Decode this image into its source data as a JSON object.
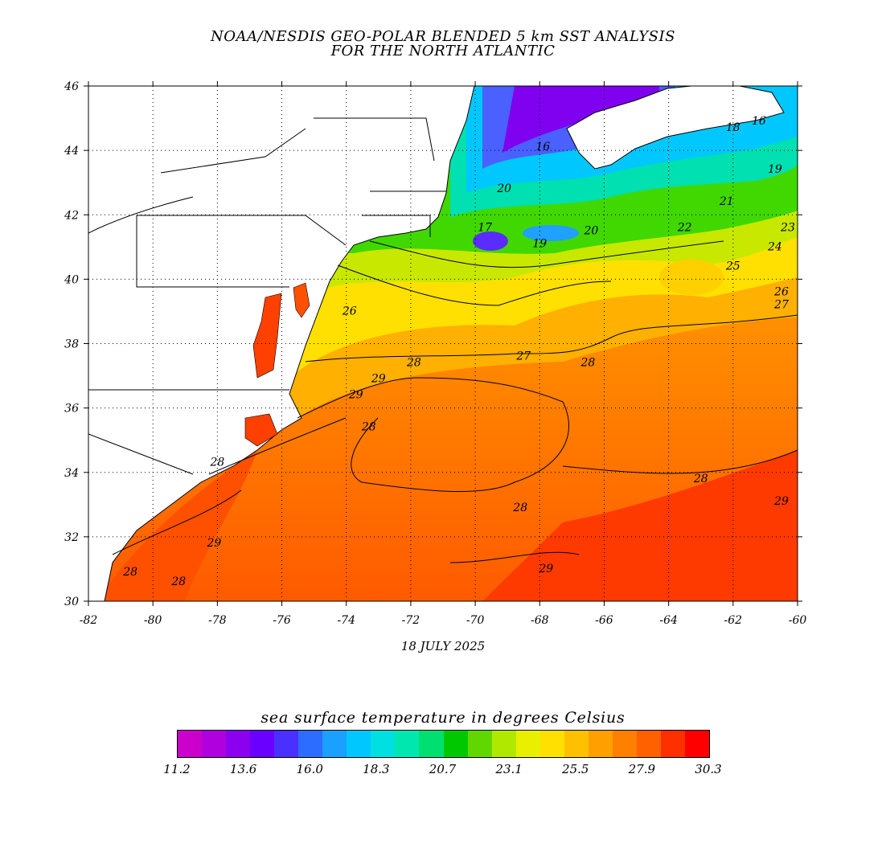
{
  "title": {
    "line1": "NOAA/NESDIS GEO-POLAR BLENDED 5 km SST ANALYSIS",
    "line2": "FOR THE NORTH ATLANTIC"
  },
  "date": "18 JULY 2025",
  "map": {
    "lon_range": [
      -82,
      -60
    ],
    "lat_range": [
      30,
      46
    ],
    "lon_ticks": [
      "-82",
      "-80",
      "-78",
      "-76",
      "-74",
      "-72",
      "-70",
      "-68",
      "-66",
      "-64",
      "-62",
      "-60"
    ],
    "lat_ticks": [
      "30",
      "32",
      "34",
      "36",
      "38",
      "40",
      "42",
      "44",
      "46"
    ],
    "grid": "dotted",
    "land_color": "#ffffff",
    "contour_labels": [
      {
        "text": "26",
        "lon": -73.9,
        "lat": 38.9
      },
      {
        "text": "27",
        "lon": -68.5,
        "lat": 37.5
      },
      {
        "text": "28",
        "lon": -71.9,
        "lat": 37.3
      },
      {
        "text": "28",
        "lon": -66.5,
        "lat": 37.3
      },
      {
        "text": "29",
        "lon": -73.0,
        "lat": 36.8
      },
      {
        "text": "29",
        "lon": -73.7,
        "lat": 36.3
      },
      {
        "text": "28",
        "lon": -73.3,
        "lat": 35.3
      },
      {
        "text": "28",
        "lon": -78.0,
        "lat": 34.2
      },
      {
        "text": "28",
        "lon": -63.0,
        "lat": 33.7
      },
      {
        "text": "28",
        "lon": -68.6,
        "lat": 32.8
      },
      {
        "text": "29",
        "lon": -60.5,
        "lat": 33.0
      },
      {
        "text": "29",
        "lon": -78.1,
        "lat": 31.7
      },
      {
        "text": "28",
        "lon": -80.7,
        "lat": 30.8
      },
      {
        "text": "28",
        "lon": -79.2,
        "lat": 30.5
      },
      {
        "text": "29",
        "lon": -67.8,
        "lat": 30.9
      },
      {
        "text": "20",
        "lon": -69.1,
        "lat": 42.7
      },
      {
        "text": "17",
        "lon": -69.7,
        "lat": 41.5
      },
      {
        "text": "19",
        "lon": -68.0,
        "lat": 41.0
      },
      {
        "text": "20",
        "lon": -66.4,
        "lat": 41.4
      },
      {
        "text": "22",
        "lon": -63.5,
        "lat": 41.5
      },
      {
        "text": "21",
        "lon": -62.2,
        "lat": 42.3
      },
      {
        "text": "25",
        "lon": -62.0,
        "lat": 40.3
      },
      {
        "text": "24",
        "lon": -60.7,
        "lat": 40.9
      },
      {
        "text": "23",
        "lon": -60.3,
        "lat": 41.5
      },
      {
        "text": "26",
        "lon": -60.5,
        "lat": 39.5
      },
      {
        "text": "27",
        "lon": -60.5,
        "lat": 39.1
      },
      {
        "text": "16",
        "lon": -67.9,
        "lat": 44.0
      },
      {
        "text": "18",
        "lon": -62.0,
        "lat": 44.6
      },
      {
        "text": "16",
        "lon": -61.2,
        "lat": 44.8
      },
      {
        "text": "19",
        "lon": -60.7,
        "lat": 43.3
      }
    ]
  },
  "colorbar": {
    "title": "sea surface temperature in degrees Celsius",
    "labels": [
      "11.2",
      "13.6",
      "16.0",
      "18.3",
      "20.7",
      "23.1",
      "25.5",
      "27.9",
      "30.3"
    ],
    "colors": [
      "#cc00cc",
      "#b000dd",
      "#8c00f0",
      "#6a00ff",
      "#4a30ff",
      "#2c6cff",
      "#1aa0ff",
      "#00c8ff",
      "#00e0e0",
      "#00e8b0",
      "#00e070",
      "#00c800",
      "#60d800",
      "#b0e800",
      "#e8f000",
      "#ffe000",
      "#ffc000",
      "#ffa000",
      "#ff8000",
      "#ff6000",
      "#ff3000",
      "#ff0000"
    ]
  }
}
